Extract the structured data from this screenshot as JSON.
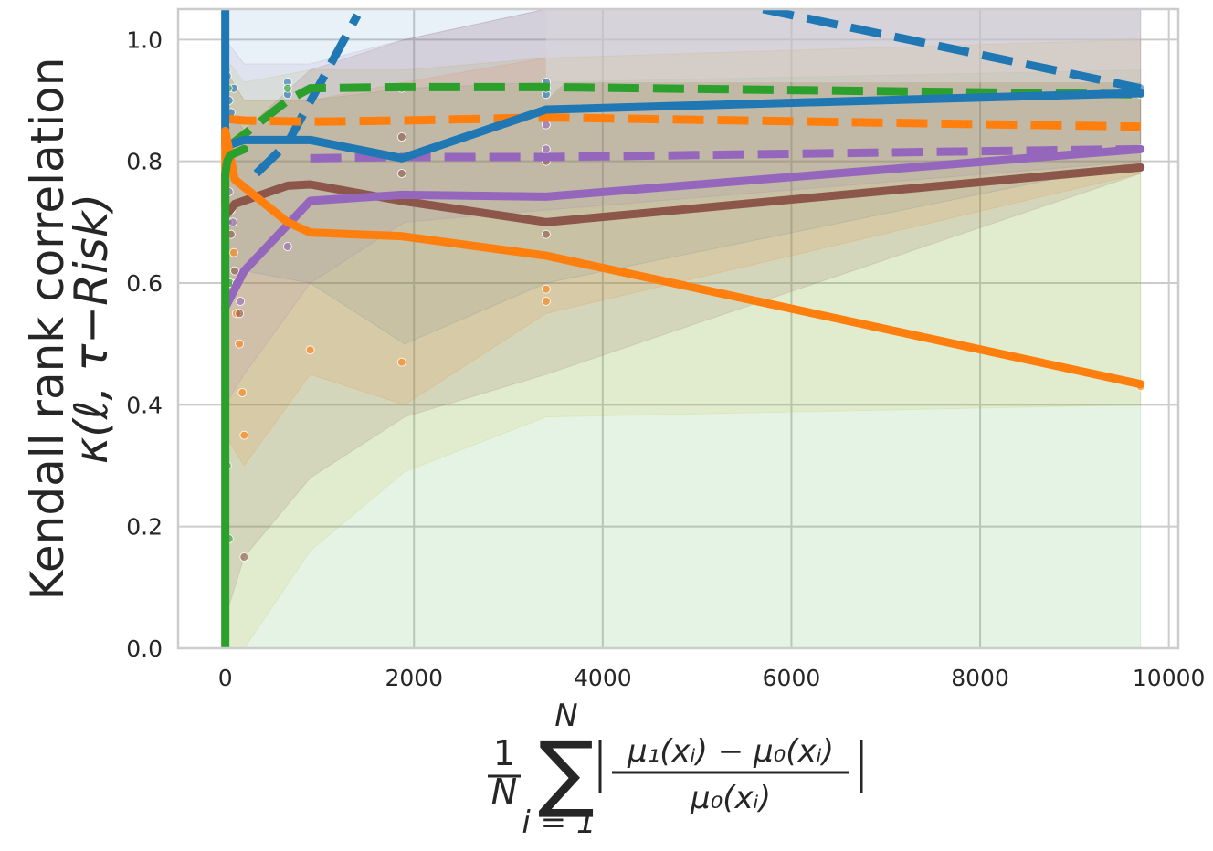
{
  "chart_data": {
    "type": "line",
    "title": "",
    "ylabel": [
      "Kendall rank correlation",
      "κ(ℓ, τ−Risk)"
    ],
    "xlabel": {
      "frac_num": "1",
      "frac_den": "N",
      "sum_top": "N",
      "sum_bottom": "i = 1",
      "numerator": "μ₁(xᵢ) − μ₀(xᵢ)",
      "denominator": "μ₀(xᵢ)"
    },
    "xlim": [
      -500,
      10100
    ],
    "ylim": [
      0.0,
      1.05
    ],
    "x_ticks": [
      0,
      2000,
      4000,
      6000,
      8000,
      10000
    ],
    "x_tick_labels": [
      "0",
      "2000",
      "4000",
      "6000",
      "8000",
      "10000"
    ],
    "y_ticks": [
      0.0,
      0.2,
      0.4,
      0.6,
      0.8,
      1.0
    ],
    "y_tick_labels": [
      "0.0",
      "0.2",
      "0.4",
      "0.6",
      "0.8",
      "1.0"
    ],
    "grid": true,
    "legend": "none",
    "bands": [
      {
        "color": "#2ca02c",
        "opacity": 0.12,
        "x": [
          0,
          200,
          900,
          1900,
          3400,
          9700
        ],
        "lower": [
          0.0,
          0.0,
          0.0,
          0.0,
          0.0,
          0.0
        ],
        "upper": [
          0.95,
          0.9,
          0.9,
          0.92,
          0.93,
          0.95
        ]
      },
      {
        "color": "#bcbd22",
        "opacity": 0.12,
        "x": [
          0,
          200,
          900,
          1900,
          3400,
          9700
        ],
        "lower": [
          0.0,
          0.0,
          0.16,
          0.29,
          0.38,
          0.4
        ],
        "upper": [
          0.97,
          0.93,
          0.95,
          0.95,
          0.97,
          1.0
        ]
      },
      {
        "color": "#1f77b4",
        "opacity": 0.1,
        "x": [
          0,
          200,
          900,
          1900,
          3400,
          9700
        ],
        "lower": [
          0.6,
          0.62,
          0.6,
          0.5,
          0.6,
          0.8
        ],
        "upper": [
          1.05,
          1.05,
          1.05,
          1.05,
          1.05,
          1.05
        ]
      },
      {
        "color": "#ff7f0e",
        "opacity": 0.12,
        "x": [
          0,
          200,
          900,
          1900,
          3400,
          9700
        ],
        "lower": [
          0.35,
          0.3,
          0.45,
          0.4,
          0.55,
          0.78
        ],
        "upper": [
          0.95,
          0.9,
          0.9,
          0.93,
          0.97,
          1.0
        ]
      },
      {
        "color": "#8c564b",
        "opacity": 0.14,
        "x": [
          0,
          200,
          900,
          1900,
          3400,
          9700
        ],
        "lower": [
          0.05,
          0.15,
          0.28,
          0.38,
          0.45,
          0.78
        ],
        "upper": [
          0.9,
          0.85,
          0.95,
          1.0,
          1.05,
          1.05
        ]
      },
      {
        "color": "#9467bd",
        "opacity": 0.1,
        "x": [
          0,
          200,
          900,
          1900,
          3400,
          9700
        ],
        "lower": [
          0.4,
          0.45,
          0.6,
          0.7,
          0.72,
          0.8
        ],
        "upper": [
          1.0,
          0.96,
          0.96,
          1.0,
          1.05,
          1.05
        ]
      },
      {
        "color": "#d9d9d9",
        "opacity": 0.55,
        "x": [
          3400,
          3600,
          9700
        ],
        "lower": [
          0.9,
          0.93,
          0.93
        ],
        "upper": [
          1.05,
          1.05,
          1.05
        ]
      }
    ],
    "scatter_points": [
      {
        "color": "#1f77b4",
        "points": [
          [
            0,
            0.96
          ],
          [
            20,
            0.94
          ],
          [
            40,
            0.9
          ],
          [
            60,
            0.88
          ],
          [
            0,
            0.85
          ],
          [
            90,
            0.92
          ],
          [
            660,
            0.93
          ],
          [
            660,
            0.91
          ],
          [
            3400,
            0.93
          ],
          [
            3400,
            0.91
          ],
          [
            9700,
            0.92
          ]
        ]
      },
      {
        "color": "#2ca02c",
        "points": [
          [
            0,
            0.97
          ],
          [
            10,
            0.95
          ],
          [
            30,
            0.92
          ],
          [
            50,
            0.6
          ],
          [
            20,
            0.3
          ],
          [
            40,
            0.18
          ],
          [
            660,
            0.92
          ],
          [
            1870,
            0.92
          ],
          [
            3400,
            0.92
          ],
          [
            9700,
            0.91
          ]
        ]
      },
      {
        "color": "#ff7f0e",
        "points": [
          [
            0,
            0.86
          ],
          [
            30,
            0.8
          ],
          [
            60,
            0.72
          ],
          [
            90,
            0.65
          ],
          [
            120,
            0.55
          ],
          [
            150,
            0.5
          ],
          [
            180,
            0.42
          ],
          [
            200,
            0.35
          ],
          [
            900,
            0.49
          ],
          [
            1870,
            0.47
          ],
          [
            3400,
            0.59
          ],
          [
            3400,
            0.57
          ],
          [
            9700,
            0.43
          ]
        ]
      },
      {
        "color": "#8c564b",
        "points": [
          [
            0,
            0.75
          ],
          [
            30,
            0.7
          ],
          [
            60,
            0.68
          ],
          [
            100,
            0.62
          ],
          [
            150,
            0.55
          ],
          [
            200,
            0.15
          ],
          [
            1870,
            0.78
          ],
          [
            1870,
            0.84
          ],
          [
            3400,
            0.68
          ],
          [
            3400,
            0.8
          ],
          [
            9700,
            0.79
          ]
        ]
      },
      {
        "color": "#9467bd",
        "points": [
          [
            0,
            0.8
          ],
          [
            40,
            0.75
          ],
          [
            80,
            0.7
          ],
          [
            120,
            0.6
          ],
          [
            160,
            0.57
          ],
          [
            660,
            0.66
          ],
          [
            3400,
            0.82
          ],
          [
            3400,
            0.86
          ],
          [
            9700,
            0.82
          ]
        ]
      }
    ],
    "series": [
      {
        "color": "#1f77b4",
        "style": "dashed",
        "x": [
          0,
          20
        ],
        "y": [
          1.05,
          1.05
        ]
      },
      {
        "color": "#1f77b4",
        "style": "dashed",
        "x": [
          330,
          660,
          1400
        ],
        "y": [
          0.78,
          0.83,
          1.04
        ]
      },
      {
        "color": "#1f77b4",
        "style": "dashed",
        "x": [
          5700,
          9700
        ],
        "y": [
          1.05,
          0.92
        ]
      },
      {
        "color": "#2ca02c",
        "style": "dashed",
        "x": [
          0,
          330,
          660,
          900,
          1870,
          3400,
          9700
        ],
        "y": [
          0.82,
          0.86,
          0.9,
          0.92,
          0.922,
          0.922,
          0.91
        ]
      },
      {
        "color": "#ff7f0e",
        "style": "dashed",
        "x": [
          0,
          200,
          900,
          1870,
          3400,
          9700
        ],
        "y": [
          0.87,
          0.867,
          0.865,
          0.867,
          0.872,
          0.857
        ]
      },
      {
        "color": "#9467bd",
        "style": "dashed",
        "x": [
          900,
          1870,
          3400,
          9700
        ],
        "y": [
          0.805,
          0.807,
          0.807,
          0.82
        ]
      },
      {
        "color": "#1f77b4",
        "style": "solid",
        "x": [
          0,
          0,
          0,
          200,
          900,
          1870,
          3400,
          9700
        ],
        "y": [
          1.05,
          0.9,
          0.825,
          0.835,
          0.835,
          0.805,
          0.885,
          0.912
        ]
      },
      {
        "color": "#8c564b",
        "style": "solid",
        "x": [
          0,
          100,
          660,
          900,
          1870,
          3400,
          9700
        ],
        "y": [
          0.71,
          0.73,
          0.76,
          0.762,
          0.735,
          0.7,
          0.79
        ]
      },
      {
        "color": "#9467bd",
        "style": "solid",
        "x": [
          0,
          200,
          900,
          1870,
          3400,
          9700
        ],
        "y": [
          0.56,
          0.62,
          0.735,
          0.745,
          0.742,
          0.82
        ]
      },
      {
        "color": "#ff7f0e",
        "style": "solid",
        "x": [
          0,
          0,
          100,
          660,
          900,
          1870,
          3400,
          9700
        ],
        "y": [
          0.73,
          0.85,
          0.77,
          0.7,
          0.683,
          0.677,
          0.645,
          0.434
        ]
      },
      {
        "color": "#2ca02c",
        "style": "solid",
        "x": [
          0,
          0,
          0,
          20,
          50,
          200
        ],
        "y": [
          0.0,
          0.6,
          0.78,
          0.8,
          0.81,
          0.82
        ]
      }
    ]
  }
}
